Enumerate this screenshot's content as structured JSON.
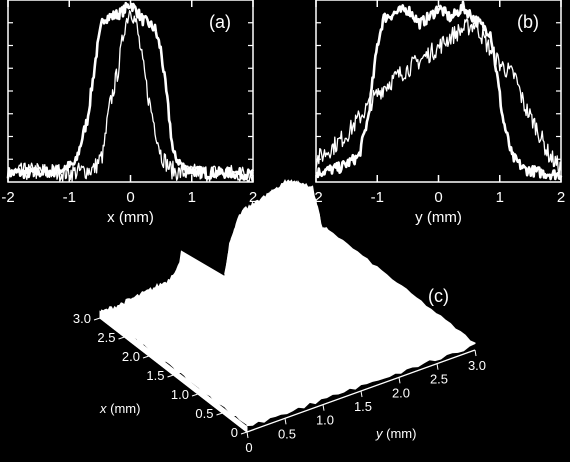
{
  "chart_data": [
    {
      "panel_label": "(a)",
      "type": "line",
      "xlabel": "x (mm)",
      "ylabel": "",
      "xlim": [
        -2,
        2
      ],
      "ylim": [
        0,
        1
      ],
      "x_ticks": [
        "-2",
        "-1",
        "0",
        "1",
        "2"
      ],
      "grid": false,
      "series": [
        {
          "x": [
            -2.0,
            -1.6,
            -1.2,
            -0.9,
            -0.7,
            -0.55,
            -0.45,
            -0.3,
            -0.15,
            0.0,
            0.1,
            0.2,
            0.3,
            0.4,
            0.5,
            0.6,
            0.7,
            0.9,
            1.2,
            1.6,
            2.0
          ],
          "y": [
            0.05,
            0.05,
            0.06,
            0.1,
            0.35,
            0.72,
            0.9,
            0.91,
            0.93,
            0.98,
            0.94,
            0.89,
            0.87,
            0.84,
            0.72,
            0.45,
            0.15,
            0.07,
            0.05,
            0.05,
            0.04
          ]
        },
        {
          "x": [
            -2.0,
            -1.5,
            -1.0,
            -0.6,
            -0.45,
            -0.35,
            -0.2,
            -0.1,
            0.0,
            0.1,
            0.2,
            0.3,
            0.4,
            0.5,
            0.65,
            0.8,
            1.0,
            1.5,
            2.0
          ],
          "y": [
            0.05,
            0.06,
            0.05,
            0.07,
            0.15,
            0.4,
            0.62,
            0.85,
            0.96,
            0.86,
            0.65,
            0.45,
            0.3,
            0.15,
            0.07,
            0.05,
            0.05,
            0.05,
            0.04
          ]
        }
      ]
    },
    {
      "panel_label": "(b)",
      "type": "line",
      "xlabel": "y (mm)",
      "ylabel": "",
      "xlim": [
        -2,
        2
      ],
      "ylim": [
        0,
        1
      ],
      "x_ticks": [
        "-2",
        "-1",
        "0",
        "1",
        "2"
      ],
      "grid": false,
      "series": [
        {
          "x": [
            -2.0,
            -1.6,
            -1.3,
            -1.15,
            -1.0,
            -0.9,
            -0.7,
            -0.5,
            -0.3,
            -0.1,
            0.0,
            0.2,
            0.4,
            0.55,
            0.7,
            0.85,
            0.95,
            1.05,
            1.2,
            1.4,
            1.7,
            2.0
          ],
          "y": [
            0.05,
            0.08,
            0.14,
            0.35,
            0.75,
            0.9,
            0.93,
            0.95,
            0.87,
            0.92,
            0.96,
            0.9,
            0.96,
            0.91,
            0.86,
            0.82,
            0.6,
            0.35,
            0.14,
            0.07,
            0.05,
            0.04
          ]
        },
        {
          "x": [
            -2.0,
            -1.7,
            -1.5,
            -1.3,
            -1.1,
            -0.9,
            -0.6,
            -0.3,
            0.0,
            0.2,
            0.4,
            0.6,
            0.8,
            1.0,
            1.1,
            1.25,
            1.4,
            1.6,
            1.8,
            2.0
          ],
          "y": [
            0.12,
            0.2,
            0.26,
            0.35,
            0.44,
            0.52,
            0.6,
            0.67,
            0.74,
            0.8,
            0.84,
            0.87,
            0.75,
            0.65,
            0.62,
            0.58,
            0.42,
            0.3,
            0.15,
            0.07
          ]
        }
      ]
    },
    {
      "panel_label": "(c)",
      "type": "surface",
      "xlabel": "x (mm)",
      "ylabel": "y (mm)",
      "x_ticks": [
        "0",
        "0.5",
        "1.0",
        "1.5",
        "2.0",
        "2.5",
        "3.0"
      ],
      "y_ticks": [
        "0",
        "0.5",
        "1.0",
        "1.5",
        "2.0",
        "2.5",
        "3.0"
      ],
      "xlim": [
        0,
        3.0
      ],
      "ylim": [
        0,
        3.0
      ],
      "z_profile_along_y": {
        "y": [
          0,
          0.3,
          0.6,
          0.9,
          1.05,
          1.15,
          1.3,
          1.5,
          1.7,
          1.9,
          2.1,
          2.25,
          2.35,
          2.5,
          2.8,
          3.0
        ],
        "z": [
          0.04,
          0.05,
          0.07,
          0.1,
          0.2,
          0.55,
          0.78,
          0.82,
          0.85,
          0.9,
          0.84,
          0.78,
          0.5,
          0.15,
          0.08,
          0.05
        ]
      }
    }
  ]
}
